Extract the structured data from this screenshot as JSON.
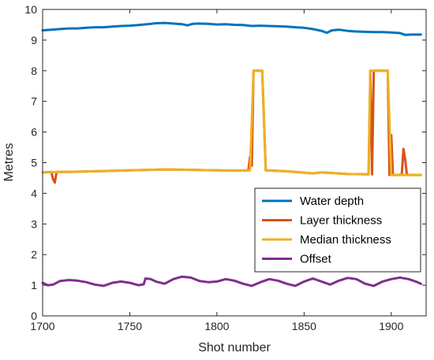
{
  "chart_data": {
    "type": "line",
    "xlabel": "Shot number",
    "ylabel": "Metres",
    "xlim": [
      1700,
      1920
    ],
    "ylim": [
      0,
      10
    ],
    "xticks": [
      1700,
      1750,
      1800,
      1850,
      1900
    ],
    "yticks": [
      0,
      1,
      2,
      3,
      4,
      5,
      6,
      7,
      8,
      9,
      10
    ],
    "grid": false,
    "legend_position": "lower-right",
    "series": [
      {
        "name": "Water depth",
        "color": "#0072BD",
        "points": [
          [
            1700,
            9.32
          ],
          [
            1705,
            9.34
          ],
          [
            1710,
            9.36
          ],
          [
            1715,
            9.38
          ],
          [
            1720,
            9.38
          ],
          [
            1725,
            9.4
          ],
          [
            1730,
            9.42
          ],
          [
            1735,
            9.42
          ],
          [
            1740,
            9.44
          ],
          [
            1745,
            9.46
          ],
          [
            1750,
            9.47
          ],
          [
            1755,
            9.49
          ],
          [
            1760,
            9.52
          ],
          [
            1765,
            9.55
          ],
          [
            1770,
            9.56
          ],
          [
            1775,
            9.54
          ],
          [
            1780,
            9.52
          ],
          [
            1783,
            9.48
          ],
          [
            1786,
            9.53
          ],
          [
            1790,
            9.54
          ],
          [
            1795,
            9.53
          ],
          [
            1800,
            9.51
          ],
          [
            1805,
            9.52
          ],
          [
            1810,
            9.5
          ],
          [
            1815,
            9.49
          ],
          [
            1820,
            9.46
          ],
          [
            1825,
            9.47
          ],
          [
            1830,
            9.46
          ],
          [
            1835,
            9.45
          ],
          [
            1840,
            9.44
          ],
          [
            1845,
            9.42
          ],
          [
            1850,
            9.4
          ],
          [
            1855,
            9.36
          ],
          [
            1860,
            9.3
          ],
          [
            1863,
            9.24
          ],
          [
            1866,
            9.32
          ],
          [
            1870,
            9.34
          ],
          [
            1875,
            9.3
          ],
          [
            1880,
            9.28
          ],
          [
            1885,
            9.27
          ],
          [
            1890,
            9.26
          ],
          [
            1895,
            9.26
          ],
          [
            1900,
            9.25
          ],
          [
            1905,
            9.23
          ],
          [
            1908,
            9.17
          ],
          [
            1912,
            9.18
          ],
          [
            1917,
            9.18
          ]
        ]
      },
      {
        "name": "Layer thickness",
        "color": "#D95319",
        "points": [
          [
            1700,
            4.68
          ],
          [
            1705,
            4.7
          ],
          [
            1706,
            4.45
          ],
          [
            1707,
            4.35
          ],
          [
            1708,
            4.7
          ],
          [
            1715,
            4.7
          ],
          [
            1730,
            4.72
          ],
          [
            1750,
            4.75
          ],
          [
            1770,
            4.78
          ],
          [
            1790,
            4.76
          ],
          [
            1810,
            4.74
          ],
          [
            1818,
            4.75
          ],
          [
            1819,
            5.2
          ],
          [
            1820,
            4.9
          ],
          [
            1821,
            8.0
          ],
          [
            1826,
            8.0
          ],
          [
            1828,
            4.75
          ],
          [
            1840,
            4.72
          ],
          [
            1855,
            4.65
          ],
          [
            1860,
            4.68
          ],
          [
            1875,
            4.63
          ],
          [
            1887,
            4.62
          ],
          [
            1888,
            8.0
          ],
          [
            1889,
            4.62
          ],
          [
            1890,
            8.0
          ],
          [
            1898,
            8.0
          ],
          [
            1899,
            4.6
          ],
          [
            1900,
            5.9
          ],
          [
            1901,
            4.6
          ],
          [
            1906,
            4.6
          ],
          [
            1907,
            5.45
          ],
          [
            1908,
            5.1
          ],
          [
            1909,
            4.6
          ],
          [
            1917,
            4.6
          ]
        ]
      },
      {
        "name": "Median thickness",
        "color": "#EDB120",
        "points": [
          [
            1700,
            4.68
          ],
          [
            1710,
            4.7
          ],
          [
            1730,
            4.72
          ],
          [
            1750,
            4.75
          ],
          [
            1770,
            4.78
          ],
          [
            1790,
            4.76
          ],
          [
            1810,
            4.74
          ],
          [
            1819,
            4.75
          ],
          [
            1821,
            8.0
          ],
          [
            1826,
            8.0
          ],
          [
            1828,
            4.75
          ],
          [
            1840,
            4.72
          ],
          [
            1855,
            4.65
          ],
          [
            1860,
            4.68
          ],
          [
            1875,
            4.63
          ],
          [
            1887,
            4.62
          ],
          [
            1888,
            8.0
          ],
          [
            1898,
            8.0
          ],
          [
            1900,
            4.6
          ],
          [
            1917,
            4.6
          ]
        ]
      },
      {
        "name": "Offset",
        "color": "#7E2F8E",
        "points": [
          [
            1700,
            1.08
          ],
          [
            1703,
            1.0
          ],
          [
            1706,
            1.02
          ],
          [
            1710,
            1.14
          ],
          [
            1715,
            1.17
          ],
          [
            1720,
            1.15
          ],
          [
            1725,
            1.1
          ],
          [
            1730,
            1.02
          ],
          [
            1735,
            0.98
          ],
          [
            1740,
            1.08
          ],
          [
            1745,
            1.12
          ],
          [
            1750,
            1.08
          ],
          [
            1755,
            1.0
          ],
          [
            1758,
            1.03
          ],
          [
            1759,
            1.22
          ],
          [
            1762,
            1.2
          ],
          [
            1765,
            1.12
          ],
          [
            1770,
            1.05
          ],
          [
            1775,
            1.2
          ],
          [
            1780,
            1.28
          ],
          [
            1785,
            1.25
          ],
          [
            1790,
            1.14
          ],
          [
            1795,
            1.1
          ],
          [
            1800,
            1.12
          ],
          [
            1805,
            1.2
          ],
          [
            1810,
            1.15
          ],
          [
            1815,
            1.05
          ],
          [
            1820,
            0.98
          ],
          [
            1825,
            1.1
          ],
          [
            1830,
            1.2
          ],
          [
            1835,
            1.15
          ],
          [
            1840,
            1.05
          ],
          [
            1845,
            0.98
          ],
          [
            1850,
            1.12
          ],
          [
            1855,
            1.22
          ],
          [
            1860,
            1.12
          ],
          [
            1865,
            1.02
          ],
          [
            1870,
            1.15
          ],
          [
            1875,
            1.24
          ],
          [
            1880,
            1.2
          ],
          [
            1885,
            1.05
          ],
          [
            1890,
            0.98
          ],
          [
            1895,
            1.12
          ],
          [
            1900,
            1.2
          ],
          [
            1905,
            1.25
          ],
          [
            1910,
            1.2
          ],
          [
            1915,
            1.1
          ],
          [
            1917,
            1.05
          ]
        ]
      }
    ]
  }
}
